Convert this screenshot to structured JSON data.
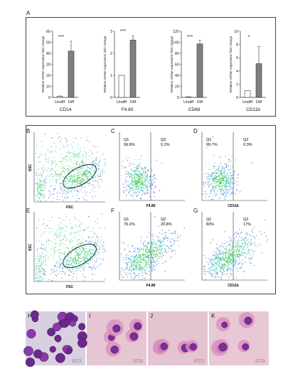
{
  "panels": {
    "A": "A",
    "B": "B",
    "C": "C",
    "D": "D",
    "E": "E",
    "F": "F",
    "G": "G",
    "H": "H",
    "I": "I",
    "J": "J",
    "K": "K"
  },
  "chart_data": [
    {
      "type": "bar",
      "title": "CD14",
      "ylabel": "Relative mRNA expression fold change",
      "categories": [
        "Undiff",
        "Diff"
      ],
      "values": [
        1,
        42
      ],
      "errors": [
        0.3,
        9
      ],
      "ylim": [
        0,
        60
      ],
      "yticks": [
        0,
        10,
        20,
        30,
        40,
        50,
        60
      ],
      "significance": "***"
    },
    {
      "type": "bar",
      "title": "F4.80",
      "ylabel": "Relative mRNA expression fold change",
      "categories": [
        "Undiff",
        "Diff"
      ],
      "values": [
        1,
        2.6
      ],
      "errors": [
        0,
        0.2
      ],
      "ylim": [
        0,
        3
      ],
      "yticks": [
        0,
        1,
        2,
        3
      ],
      "significance": "***"
    },
    {
      "type": "bar",
      "title": "CD68",
      "ylabel": "Relative mRNA expression fold change",
      "categories": [
        "Undiff",
        "Diff"
      ],
      "values": [
        1,
        97
      ],
      "errors": [
        0.3,
        7
      ],
      "ylim": [
        0,
        120
      ],
      "yticks": [
        0,
        20,
        40,
        60,
        80,
        100,
        120
      ],
      "significance": "***"
    },
    {
      "type": "bar",
      "title": "CD11b",
      "ylabel": "Relative mRNA expression fold change",
      "categories": [
        "Undiff",
        "Diff"
      ],
      "values": [
        1,
        5.1
      ],
      "errors": [
        0,
        2.6
      ],
      "ylim": [
        0,
        10
      ],
      "yticks": [
        0,
        2,
        4,
        6,
        8,
        10
      ],
      "significance": "*"
    }
  ],
  "flow": {
    "ssc_label": "SSC",
    "fsc_label": "FSC",
    "plots": {
      "C": {
        "xlabel": "F4.80",
        "q1": "Q1",
        "q1_val": "99.8%",
        "q2": "Q2",
        "q2_val": "0.2%"
      },
      "D": {
        "xlabel": "CD11b",
        "q1": "Q1",
        "q1_val": "99.7%",
        "q2": "Q2",
        "q2_val": "0.3%"
      },
      "F": {
        "xlabel": "F4.80",
        "q1": "Q1",
        "q1_val": "79.2%",
        "q2": "Q2",
        "q2_val": "20.8%"
      },
      "G": {
        "xlabel": "CD11b",
        "q1": "Q1",
        "q1_val": "83%",
        "q2": "Q2",
        "q2_val": "17%"
      }
    }
  },
  "colors": {
    "bar_undiff": "#ffffff",
    "bar_diff": "#7f7f7f",
    "stain_bg": "#e9c7d2",
    "cell_purple": "#6a2a8c"
  }
}
